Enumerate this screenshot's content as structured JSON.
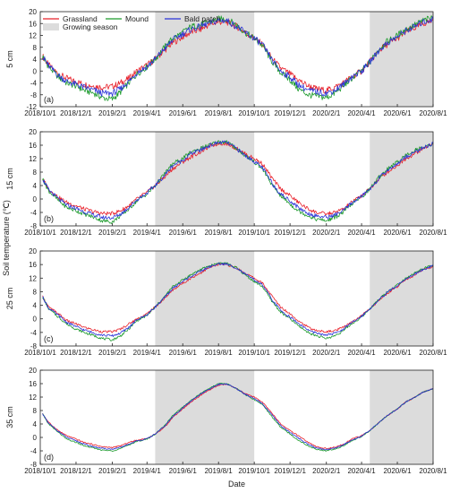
{
  "chart_data": {
    "type": "line",
    "xlabel": "Date",
    "ylabel": "Soil temperature (℃)",
    "x_ticks": [
      "2018/10/1",
      "2018/12/1",
      "2019/2/1",
      "2019/4/1",
      "2019/6/1",
      "2019/8/1",
      "2019/10/1",
      "2019/12/1",
      "2020/2/1",
      "2020/4/1",
      "2020/6/1",
      "2020/8/1"
    ],
    "shaded_periods": [
      {
        "start": "2019/4/15",
        "end": "2019/10/1"
      },
      {
        "start": "2020/4/15",
        "end": "2020/8/1"
      }
    ],
    "legend": {
      "entries": [
        {
          "name": "Grassland",
          "color": "#e8202a"
        },
        {
          "name": "Mound",
          "color": "#1a9a2a"
        },
        {
          "name": "Bald patch",
          "color": "#2a33d8"
        },
        {
          "name": "Growing season",
          "color": "#dcdcdc"
        }
      ],
      "placement": "top-left"
    },
    "panels": [
      {
        "letter": "(a)",
        "depth": "5 cm",
        "ylim": [
          -12,
          20
        ],
        "yticks": [
          -12,
          -8,
          -4,
          0,
          4,
          8,
          12,
          16,
          20
        ],
        "dates": [
          "2018/10/5",
          "2018/10/15",
          "2018/11/1",
          "2018/11/15",
          "2018/12/1",
          "2018/12/15",
          "2019/1/1",
          "2019/1/15",
          "2019/2/1",
          "2019/2/15",
          "2019/3/1",
          "2019/3/15",
          "2019/4/1",
          "2019/4/15",
          "2019/5/1",
          "2019/5/15",
          "2019/6/1",
          "2019/6/15",
          "2019/7/1",
          "2019/7/15",
          "2019/8/1",
          "2019/8/15",
          "2019/9/1",
          "2019/9/15",
          "2019/10/1",
          "2019/10/15",
          "2019/11/1",
          "2019/11/15",
          "2019/12/1",
          "2019/12/15",
          "2020/1/1",
          "2020/1/15",
          "2020/2/1",
          "2020/2/15",
          "2020/3/1",
          "2020/3/15",
          "2020/4/1",
          "2020/4/15",
          "2020/5/1",
          "2020/5/15",
          "2020/6/1",
          "2020/6/15",
          "2020/7/1",
          "2020/7/15",
          "2020/8/1"
        ],
        "series": [
          {
            "name": "Grassland",
            "color": "#e8202a",
            "values": [
              5,
              2,
              -1,
              -2.5,
              -3.5,
              -4.5,
              -5,
              -5.5,
              -5.2,
              -4,
              -2.5,
              0,
              2,
              4,
              7,
              9.5,
              11.5,
              13,
              14,
              15.5,
              16.5,
              16.5,
              15,
              13,
              11,
              9,
              4,
              1,
              -1,
              -3,
              -5,
              -6,
              -6.5,
              -5.5,
              -4,
              -2,
              0,
              3,
              7,
              9,
              11,
              13,
              14.5,
              16,
              17
            ]
          },
          {
            "name": "Mound",
            "color": "#1a9a2a",
            "values": [
              5,
              1.5,
              -2,
              -4,
              -5,
              -6.5,
              -7.5,
              -9,
              -9.5,
              -7,
              -4,
              -1,
              1.5,
              4,
              8,
              11,
              13,
              15,
              15.5,
              16.5,
              17.5,
              17.5,
              15.5,
              13,
              11,
              8.5,
              3,
              -0.5,
              -3,
              -6,
              -8,
              -8.5,
              -9,
              -7.5,
              -5,
              -2.5,
              0,
              3,
              7.5,
              10,
              12,
              14,
              15.5,
              17,
              18
            ]
          },
          {
            "name": "Bald patch",
            "color": "#2a33d8",
            "values": [
              5,
              1.8,
              -1.5,
              -3.5,
              -4.5,
              -5.5,
              -6.5,
              -7.5,
              -7.5,
              -6,
              -3.5,
              -0.5,
              1.5,
              4,
              7.5,
              10.5,
              12.5,
              14,
              15,
              16,
              17,
              17,
              15,
              13,
              11,
              8.8,
              3.5,
              0,
              -2,
              -4.5,
              -6.5,
              -7,
              -7.5,
              -6.5,
              -4.5,
              -2,
              0,
              3,
              7,
              9.5,
              11.5,
              13.5,
              15,
              16.5,
              17.5
            ]
          }
        ]
      },
      {
        "letter": "(b)",
        "depth": "15 cm",
        "ylim": [
          -8,
          20
        ],
        "yticks": [
          -8,
          -4,
          0,
          4,
          8,
          12,
          16,
          20
        ],
        "dates": [
          "2018/10/5",
          "2018/10/15",
          "2018/11/1",
          "2018/11/15",
          "2018/12/1",
          "2018/12/15",
          "2019/1/1",
          "2019/1/15",
          "2019/2/1",
          "2019/2/15",
          "2019/3/1",
          "2019/3/15",
          "2019/4/1",
          "2019/4/15",
          "2019/5/1",
          "2019/5/15",
          "2019/6/1",
          "2019/6/15",
          "2019/7/1",
          "2019/7/15",
          "2019/8/1",
          "2019/8/15",
          "2019/9/1",
          "2019/9/15",
          "2019/10/1",
          "2019/10/15",
          "2019/11/1",
          "2019/11/15",
          "2019/12/1",
          "2019/12/15",
          "2020/1/1",
          "2020/1/15",
          "2020/2/1",
          "2020/2/15",
          "2020/3/1",
          "2020/3/15",
          "2020/4/1",
          "2020/4/15",
          "2020/5/1",
          "2020/5/15",
          "2020/6/1",
          "2020/6/15",
          "2020/7/1",
          "2020/7/15",
          "2020/8/1"
        ],
        "series": [
          {
            "name": "Grassland",
            "color": "#e8202a",
            "values": [
              6,
              3,
              0.5,
              -1,
              -2,
              -3,
              -3.8,
              -4.3,
              -4.3,
              -3.5,
              -2,
              0,
              2,
              4,
              6.5,
              9,
              11,
              12.5,
              14,
              15.5,
              16.5,
              16.5,
              15,
              13.5,
              12,
              10.5,
              6,
              3,
              1,
              -1,
              -3,
              -4,
              -4.5,
              -4,
              -3,
              -1,
              1,
              3,
              6,
              8,
              10,
              12,
              13.5,
              15,
              16.5
            ]
          },
          {
            "name": "Mound",
            "color": "#1a9a2a",
            "values": [
              6,
              2.5,
              -0.5,
              -2.5,
              -3.5,
              -4.5,
              -5.5,
              -6.5,
              -6.8,
              -5,
              -3,
              -0.5,
              1.5,
              4,
              7.5,
              10.5,
              12,
              14,
              15,
              16,
              17,
              17,
              15,
              13,
              11,
              9,
              4,
              1,
              -1.5,
              -3.5,
              -5,
              -6,
              -6.5,
              -5.5,
              -4,
              -1.5,
              0.5,
              3,
              6.5,
              9,
              11,
              13,
              14.5,
              15.5,
              16.5
            ]
          },
          {
            "name": "Bald patch",
            "color": "#2a33d8",
            "values": [
              6,
              2.8,
              0,
              -1.8,
              -2.8,
              -3.8,
              -4.8,
              -5.5,
              -5.6,
              -4.5,
              -2.5,
              -0.2,
              1.8,
              4,
              7,
              10,
              11.5,
              13.5,
              14.5,
              15.8,
              16.8,
              16.8,
              15,
              13,
              11.2,
              9.3,
              4.5,
              1.5,
              -0.5,
              -2.5,
              -4.3,
              -5,
              -5.5,
              -4.8,
              -3.5,
              -1.2,
              0.8,
              3,
              6.2,
              8.5,
              10.5,
              12.5,
              14,
              15.2,
              16.5
            ]
          }
        ]
      },
      {
        "letter": "(c)",
        "depth": "25 cm",
        "ylim": [
          -8,
          20
        ],
        "yticks": [
          -8,
          -4,
          0,
          4,
          8,
          12,
          16,
          20
        ],
        "dates": [
          "2018/10/5",
          "2018/10/15",
          "2018/11/1",
          "2018/11/15",
          "2018/12/1",
          "2018/12/15",
          "2019/1/1",
          "2019/1/15",
          "2019/2/1",
          "2019/2/15",
          "2019/3/1",
          "2019/3/15",
          "2019/4/1",
          "2019/4/15",
          "2019/5/1",
          "2019/5/15",
          "2019/6/1",
          "2019/6/15",
          "2019/7/1",
          "2019/7/15",
          "2019/8/1",
          "2019/8/15",
          "2019/9/1",
          "2019/9/15",
          "2019/10/1",
          "2019/10/15",
          "2019/11/1",
          "2019/11/15",
          "2019/12/1",
          "2019/12/15",
          "2020/1/1",
          "2020/1/15",
          "2020/2/1",
          "2020/2/15",
          "2020/3/1",
          "2020/3/15",
          "2020/4/1",
          "2020/4/15",
          "2020/5/1",
          "2020/5/15",
          "2020/6/1",
          "2020/6/15",
          "2020/7/1",
          "2020/7/15",
          "2020/8/1"
        ],
        "series": [
          {
            "name": "Grassland",
            "color": "#e8202a",
            "values": [
              6.5,
              3.5,
              1.5,
              -0.5,
              -1.5,
              -2.5,
              -3.3,
              -3.8,
              -3.8,
              -3,
              -1.5,
              0,
              1.5,
              3.5,
              6,
              8.5,
              10.5,
              12,
              13.5,
              15,
              16,
              16,
              15,
              13.5,
              12,
              10.5,
              6.5,
              3.5,
              1.5,
              -0.5,
              -2.5,
              -3.5,
              -3.8,
              -3.5,
              -2.5,
              -1,
              1,
              3,
              5.5,
              7.5,
              9.5,
              11.5,
              13,
              14.5,
              15.5
            ]
          },
          {
            "name": "Mound",
            "color": "#1a9a2a",
            "values": [
              6.5,
              3,
              0.5,
              -1.5,
              -3,
              -4,
              -5,
              -5.8,
              -6.2,
              -5,
              -3,
              -0.5,
              1,
              3.5,
              6.5,
              9.5,
              11.5,
              13,
              14.5,
              15.5,
              16.5,
              16.3,
              15,
              13,
              11,
              9.5,
              5,
              2,
              0,
              -2,
              -4,
              -5,
              -5.8,
              -5,
              -3.5,
              -1.5,
              0.5,
              3,
              5.8,
              8,
              10,
              12,
              13.5,
              14.8,
              15.8
            ]
          },
          {
            "name": "Bald patch",
            "color": "#2a33d8",
            "values": [
              6.5,
              3.2,
              1,
              -1,
              -2.3,
              -3.3,
              -4.2,
              -4.8,
              -5,
              -4.2,
              -2.5,
              -0.3,
              1.2,
              3.5,
              6.2,
              9,
              11,
              12.5,
              14,
              15.2,
              16.2,
              16.1,
              15,
              13.2,
              11.5,
              10,
              5.5,
              2.5,
              0.5,
              -1.3,
              -3.3,
              -4.3,
              -4.8,
              -4.3,
              -3,
              -1.2,
              0.8,
              3,
              5.6,
              7.8,
              9.8,
              11.8,
              13.2,
              14.6,
              15.6
            ]
          }
        ]
      },
      {
        "letter": "(d)",
        "depth": "35 cm",
        "ylim": [
          -8,
          20
        ],
        "yticks": [
          -8,
          -4,
          0,
          4,
          8,
          12,
          16,
          20
        ],
        "dates": [
          "2018/10/5",
          "2018/10/15",
          "2018/11/1",
          "2018/11/15",
          "2018/12/1",
          "2018/12/15",
          "2019/1/1",
          "2019/1/15",
          "2019/2/1",
          "2019/2/15",
          "2019/3/1",
          "2019/3/15",
          "2019/4/1",
          "2019/4/15",
          "2019/5/1",
          "2019/5/15",
          "2019/6/1",
          "2019/6/15",
          "2019/7/1",
          "2019/7/15",
          "2019/8/1",
          "2019/8/15",
          "2019/9/1",
          "2019/9/15",
          "2019/10/1",
          "2019/10/15",
          "2019/11/1",
          "2019/11/15",
          "2019/12/1",
          "2019/12/15",
          "2020/1/1",
          "2020/1/15",
          "2020/2/1",
          "2020/2/15",
          "2020/3/1",
          "2020/3/15",
          "2020/4/1",
          "2020/4/15",
          "2020/5/1",
          "2020/5/15",
          "2020/6/1",
          "2020/6/15",
          "2020/7/1",
          "2020/7/15",
          "2020/8/1"
        ],
        "series": [
          {
            "name": "Grassland",
            "color": "#e8202a",
            "values": [
              7,
              4.5,
              2,
              0.5,
              -0.5,
              -1.5,
              -2.2,
              -2.8,
              -3,
              -2.5,
              -1.5,
              -0.8,
              -0.3,
              1,
              3,
              6,
              8.5,
              10.5,
              12.5,
              14,
              15.5,
              15.8,
              14.5,
              13,
              12,
              10.5,
              7,
              4,
              2,
              0.5,
              -1.5,
              -2.8,
              -3.3,
              -3,
              -2,
              -0.5,
              0.5,
              2,
              4.5,
              6.5,
              8.5,
              10.5,
              12,
              13.5,
              14.5
            ]
          },
          {
            "name": "Mound",
            "color": "#1a9a2a",
            "values": [
              7,
              4,
              1.5,
              -0.5,
              -1.5,
              -2.5,
              -3.2,
              -3.8,
              -4,
              -3.3,
              -2.2,
              -1.2,
              -0.5,
              1,
              3.5,
              6.5,
              9,
              11,
              13,
              14.5,
              16,
              16,
              14.5,
              12.8,
              11.2,
              9.8,
              6,
              3,
              1,
              -0.8,
              -2.5,
              -3.5,
              -4,
              -3.5,
              -2.5,
              -1,
              0.3,
              2,
              4.5,
              6.5,
              8.5,
              10.5,
              12,
              13.5,
              14.5
            ]
          },
          {
            "name": "Bald patch",
            "color": "#2a33d8",
            "values": [
              7,
              4.2,
              1.8,
              0,
              -1,
              -2,
              -2.8,
              -3.3,
              -3.5,
              -3,
              -2,
              -1,
              -0.4,
              1,
              3.3,
              6.2,
              8.8,
              10.8,
              12.8,
              14.2,
              15.8,
              15.9,
              14.5,
              12.9,
              11.5,
              10,
              6.5,
              3.5,
              1.5,
              -0.2,
              -2,
              -3.2,
              -3.6,
              -3.2,
              -2.2,
              -0.8,
              0.4,
              2,
              4.5,
              6.5,
              8.5,
              10.5,
              12,
              13.5,
              14.5
            ]
          }
        ]
      }
    ]
  }
}
